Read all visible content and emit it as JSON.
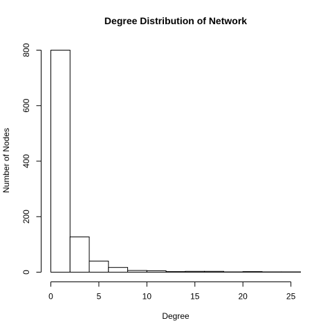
{
  "chart_data": {
    "type": "bar",
    "title": "Degree Distribution of Network",
    "xlabel": "Degree",
    "ylabel": "Number of Nodes",
    "bin_edges": [
      0,
      2,
      4,
      6,
      8,
      10,
      12,
      14,
      16,
      18,
      20,
      22,
      24,
      26
    ],
    "values": [
      800,
      127,
      40,
      17,
      6,
      5,
      2,
      3,
      3,
      1,
      2,
      1,
      1
    ],
    "xlim": [
      0,
      26
    ],
    "ylim": [
      0,
      800
    ],
    "x_ticks": [
      0,
      5,
      10,
      15,
      20,
      25
    ],
    "y_ticks": [
      0,
      200,
      400,
      600,
      800
    ],
    "grid": false,
    "legend": "none",
    "bar_fill": "#ffffff",
    "bar_stroke": "#000000"
  }
}
